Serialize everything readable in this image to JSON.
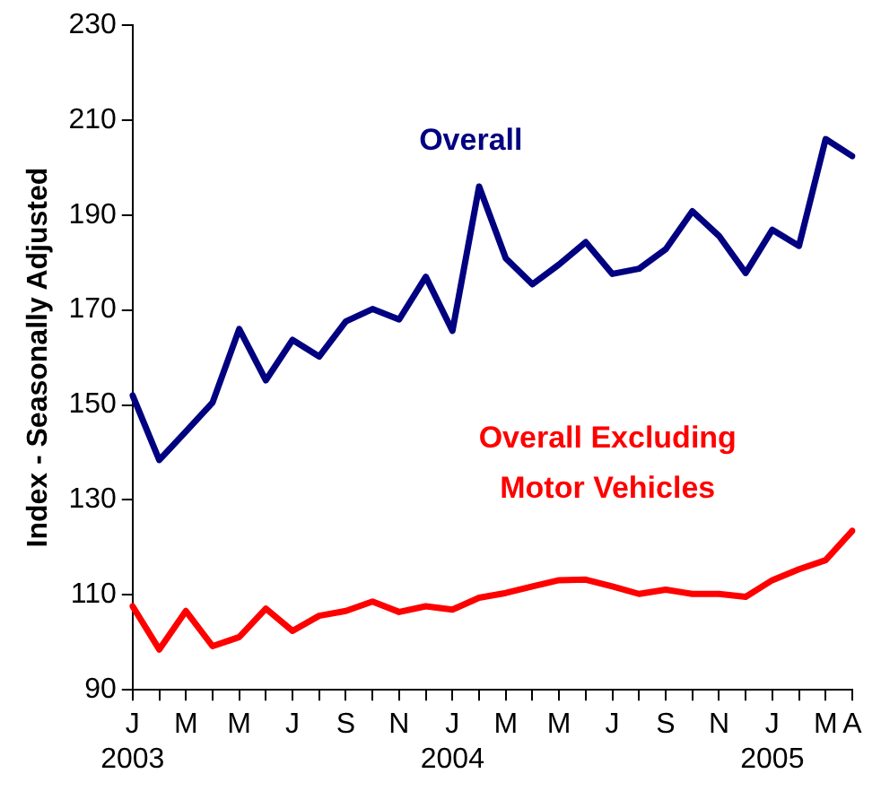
{
  "chart_data": {
    "type": "line",
    "ylabel": "Index - Seasonally Adjusted",
    "categories": [
      "J\n2003",
      null,
      "M",
      null,
      "M",
      null,
      "J",
      null,
      "S",
      null,
      "N",
      null,
      "J\n2004",
      null,
      "M",
      null,
      "M",
      null,
      "J",
      null,
      "S",
      null,
      "N",
      null,
      "J\n2005",
      null,
      "M",
      "A"
    ],
    "series": [
      {
        "name": "Overall",
        "color": "#000080",
        "values": [
          152.0,
          138.4,
          144.4,
          150.5,
          166.0,
          155.2,
          163.7,
          160.2,
          167.6,
          170.2,
          168.0,
          177.0,
          165.6,
          196.0,
          180.9,
          175.4,
          179.6,
          184.3,
          177.6,
          178.7,
          182.8,
          190.8,
          185.6,
          177.8,
          186.9,
          183.5,
          206.0,
          202.4
        ]
      },
      {
        "name": "Overall Excluding Motor Vehicles",
        "color": "#ff0000",
        "values": [
          107.6,
          98.5,
          106.6,
          99.2,
          101.1,
          107.1,
          102.4,
          105.6,
          106.6,
          108.6,
          106.4,
          107.6,
          106.9,
          109.4,
          110.4,
          111.8,
          113.1,
          113.2,
          111.8,
          110.2,
          111.1,
          110.2,
          110.2,
          109.6,
          113.1,
          115.4,
          117.3,
          123.5
        ]
      }
    ],
    "ylim": [
      90,
      230
    ],
    "yticks": [
      90,
      110,
      130,
      150,
      170,
      190,
      210,
      230
    ],
    "grid": false,
    "legend": false,
    "marker": "none",
    "line_style": "solid"
  }
}
